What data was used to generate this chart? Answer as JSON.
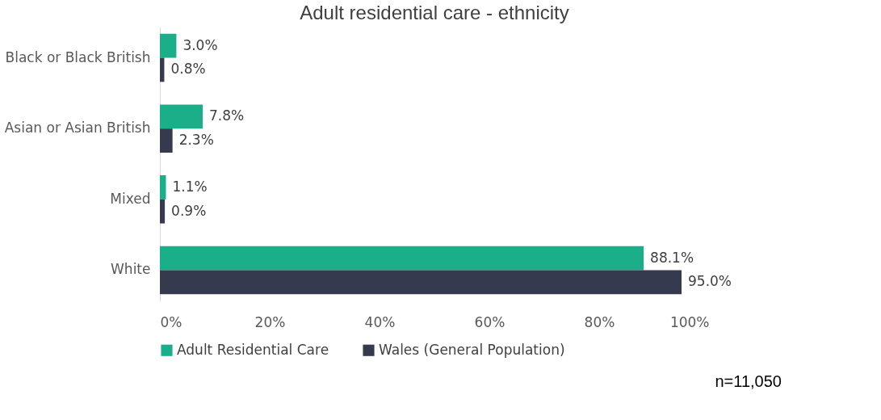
{
  "chart_data": {
    "type": "bar",
    "orientation": "horizontal",
    "title": "Adult residential care - ethnicity",
    "categories": [
      "Black or Black British",
      "Asian or Asian British",
      "Mixed",
      "White"
    ],
    "series": [
      {
        "name": "Adult Residential Care",
        "color": "#1aaf88",
        "values": [
          3.0,
          7.8,
          1.1,
          88.1
        ],
        "value_labels": [
          "3.0%",
          "7.8%",
          "1.1%",
          "88.1%"
        ]
      },
      {
        "name": "Wales (General Population)",
        "color": "#363a4f",
        "values": [
          0.8,
          2.3,
          0.9,
          95.0
        ],
        "value_labels": [
          "0.8%",
          "2.3%",
          "0.9%",
          "95.0%"
        ]
      }
    ],
    "xlim": [
      0,
      100
    ],
    "xticks": [
      {
        "value": 0,
        "label": "0%"
      },
      {
        "value": 20,
        "label": "20%"
      },
      {
        "value": 40,
        "label": "40%"
      },
      {
        "value": 60,
        "label": "60%"
      },
      {
        "value": 80,
        "label": "80%"
      },
      {
        "value": 100,
        "label": "100%"
      }
    ],
    "grid": false,
    "legend": "bottom",
    "annotations": [
      "n=11,050"
    ]
  }
}
